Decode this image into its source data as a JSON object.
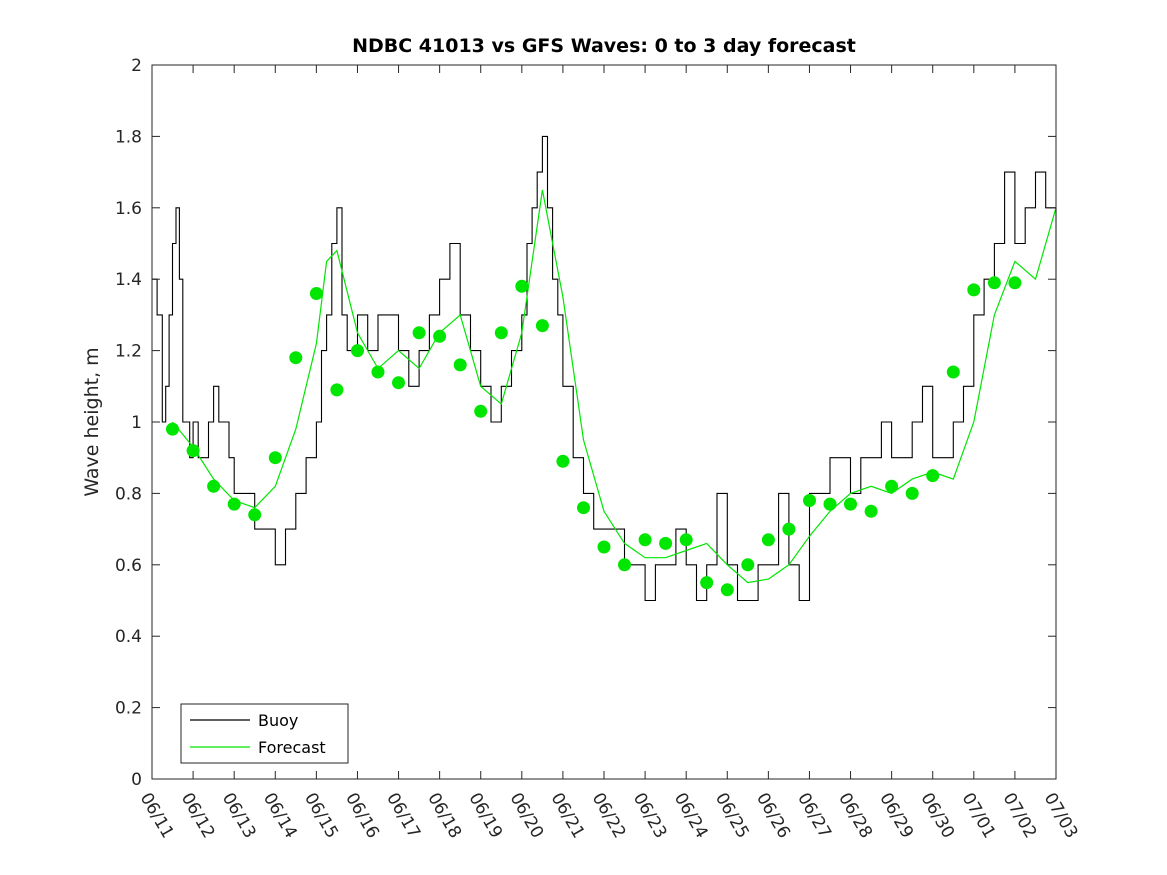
{
  "chart_data": {
    "type": "line",
    "title": "NDBC 41013 vs GFS Waves: 0 to 3 day forecast",
    "xlabel": "",
    "ylabel": "Wave height, m",
    "ylim": [
      0,
      2
    ],
    "yticks": [
      "0",
      "0.2",
      "0.4",
      "0.6",
      "0.8",
      "1",
      "1.2",
      "1.4",
      "1.6",
      "1.8",
      "2"
    ],
    "xlim": [
      "06/11",
      "07/03"
    ],
    "xticks": [
      "06/11",
      "06/12",
      "06/13",
      "06/14",
      "06/15",
      "06/16",
      "06/17",
      "06/18",
      "06/19",
      "06/20",
      "06/21",
      "06/22",
      "06/23",
      "06/24",
      "06/25",
      "06/26",
      "06/27",
      "06/28",
      "06/29",
      "06/30",
      "07/01",
      "07/02",
      "07/03"
    ],
    "grid": false,
    "legend_position": "bottom-left",
    "legend": [
      "Buoy",
      "Forecast"
    ],
    "colors": {
      "buoy": "#000000",
      "forecast": "#00e600",
      "axis": "#262626"
    },
    "series": [
      {
        "name": "Buoy",
        "style": "step",
        "x": [
          "06/11 00:00",
          "06/11 03:00",
          "06/11 06:00",
          "06/11 08:00",
          "06/11 10:00",
          "06/11 12:00",
          "06/11 14:00",
          "06/11 16:00",
          "06/11 18:00",
          "06/11 20:00",
          "06/11 22:00",
          "06/12 00:00",
          "06/12 03:00",
          "06/12 06:00",
          "06/12 09:00",
          "06/12 12:00",
          "06/12 15:00",
          "06/12 18:00",
          "06/12 21:00",
          "06/13 00:00",
          "06/13 06:00",
          "06/13 12:00",
          "06/13 18:00",
          "06/14 00:00",
          "06/14 06:00",
          "06/14 12:00",
          "06/14 18:00",
          "06/15 00:00",
          "06/15 03:00",
          "06/15 06:00",
          "06/15 09:00",
          "06/15 12:00",
          "06/15 15:00",
          "06/15 18:00",
          "06/16 00:00",
          "06/16 06:00",
          "06/16 12:00",
          "06/16 18:00",
          "06/17 00:00",
          "06/17 06:00",
          "06/17 12:00",
          "06/17 18:00",
          "06/18 00:00",
          "06/18 06:00",
          "06/18 12:00",
          "06/18 18:00",
          "06/19 00:00",
          "06/19 06:00",
          "06/19 12:00",
          "06/19 18:00",
          "06/20 00:00",
          "06/20 03:00",
          "06/20 06:00",
          "06/20 09:00",
          "06/20 12:00",
          "06/20 15:00",
          "06/20 18:00",
          "06/20 21:00",
          "06/21 00:00",
          "06/21 06:00",
          "06/21 12:00",
          "06/21 18:00",
          "06/22 00:00",
          "06/22 06:00",
          "06/22 12:00",
          "06/22 18:00",
          "06/23 00:00",
          "06/23 06:00",
          "06/23 12:00",
          "06/23 18:00",
          "06/24 00:00",
          "06/24 06:00",
          "06/24 12:00",
          "06/24 18:00",
          "06/25 00:00",
          "06/25 06:00",
          "06/25 12:00",
          "06/25 18:00",
          "06/26 00:00",
          "06/26 06:00",
          "06/26 12:00",
          "06/26 18:00",
          "06/27 00:00",
          "06/27 06:00",
          "06/27 12:00",
          "06/27 18:00",
          "06/28 00:00",
          "06/28 06:00",
          "06/28 12:00",
          "06/28 18:00",
          "06/29 00:00",
          "06/29 06:00",
          "06/29 12:00",
          "06/29 18:00",
          "06/30 00:00",
          "06/30 06:00",
          "06/30 12:00",
          "06/30 18:00",
          "07/01 00:00",
          "07/01 06:00",
          "07/01 12:00",
          "07/01 18:00",
          "07/02 00:00",
          "07/02 06:00",
          "07/02 12:00",
          "07/02 18:00",
          "07/03 00:00"
        ],
        "values": [
          1.4,
          1.3,
          1.0,
          1.1,
          1.3,
          1.5,
          1.6,
          1.4,
          1.0,
          1.0,
          0.9,
          1.0,
          0.9,
          0.9,
          1.0,
          1.1,
          1.0,
          1.0,
          0.9,
          0.8,
          0.8,
          0.7,
          0.7,
          0.6,
          0.7,
          0.8,
          0.9,
          1.0,
          1.2,
          1.3,
          1.5,
          1.6,
          1.3,
          1.2,
          1.3,
          1.2,
          1.3,
          1.3,
          1.2,
          1.1,
          1.2,
          1.3,
          1.4,
          1.5,
          1.3,
          1.2,
          1.1,
          1.0,
          1.1,
          1.2,
          1.3,
          1.5,
          1.6,
          1.7,
          1.8,
          1.6,
          1.4,
          1.3,
          1.1,
          0.9,
          0.8,
          0.7,
          0.7,
          0.7,
          0.6,
          0.6,
          0.5,
          0.6,
          0.6,
          0.7,
          0.6,
          0.5,
          0.6,
          0.8,
          0.6,
          0.5,
          0.5,
          0.6,
          0.6,
          0.8,
          0.6,
          0.5,
          0.8,
          0.8,
          0.9,
          0.9,
          0.8,
          0.9,
          0.9,
          1.0,
          0.9,
          0.9,
          1.0,
          1.1,
          0.9,
          0.9,
          1.0,
          1.1,
          1.3,
          1.4,
          1.5,
          1.7,
          1.5,
          1.6,
          1.7,
          1.6,
          1.4
        ]
      },
      {
        "name": "Forecast",
        "style": "line",
        "x": [
          "06/11 12:00",
          "06/12 00:00",
          "06/12 12:00",
          "06/13 00:00",
          "06/13 12:00",
          "06/14 00:00",
          "06/14 12:00",
          "06/15 00:00",
          "06/15 06:00",
          "06/15 12:00",
          "06/16 00:00",
          "06/16 12:00",
          "06/17 00:00",
          "06/17 12:00",
          "06/18 00:00",
          "06/18 12:00",
          "06/19 00:00",
          "06/19 12:00",
          "06/20 00:00",
          "06/20 06:00",
          "06/20 12:00",
          "06/21 00:00",
          "06/21 12:00",
          "06/22 00:00",
          "06/22 12:00",
          "06/23 00:00",
          "06/23 12:00",
          "06/24 00:00",
          "06/24 12:00",
          "06/25 00:00",
          "06/25 12:00",
          "06/26 00:00",
          "06/26 12:00",
          "06/27 00:00",
          "06/27 12:00",
          "06/28 00:00",
          "06/28 12:00",
          "06/29 00:00",
          "06/29 12:00",
          "06/30 00:00",
          "06/30 12:00",
          "07/01 00:00",
          "07/01 12:00",
          "07/02 00:00",
          "07/02 12:00",
          "07/03 00:00"
        ],
        "values": [
          1.0,
          0.93,
          0.84,
          0.78,
          0.76,
          0.82,
          0.98,
          1.22,
          1.45,
          1.48,
          1.25,
          1.15,
          1.2,
          1.15,
          1.25,
          1.3,
          1.1,
          1.05,
          1.25,
          1.45,
          1.65,
          1.35,
          0.95,
          0.75,
          0.66,
          0.62,
          0.62,
          0.64,
          0.66,
          0.6,
          0.55,
          0.56,
          0.6,
          0.68,
          0.75,
          0.8,
          0.82,
          0.8,
          0.84,
          0.86,
          0.84,
          1.0,
          1.3,
          1.45,
          1.4,
          1.6
        ]
      },
      {
        "name": "Forecast",
        "style": "markers",
        "x": [
          "06/11 12:00",
          "06/12 00:00",
          "06/12 12:00",
          "06/13 00:00",
          "06/13 12:00",
          "06/14 00:00",
          "06/14 12:00",
          "06/15 00:00",
          "06/15 12:00",
          "06/16 00:00",
          "06/16 12:00",
          "06/17 00:00",
          "06/17 12:00",
          "06/18 00:00",
          "06/18 12:00",
          "06/19 00:00",
          "06/19 12:00",
          "06/20 00:00",
          "06/20 12:00",
          "06/21 00:00",
          "06/21 12:00",
          "06/22 00:00",
          "06/22 12:00",
          "06/23 00:00",
          "06/23 12:00",
          "06/24 00:00",
          "06/24 12:00",
          "06/25 00:00",
          "06/25 12:00",
          "06/26 00:00",
          "06/26 12:00",
          "06/27 00:00",
          "06/27 12:00",
          "06/28 00:00",
          "06/28 12:00",
          "06/29 00:00",
          "06/29 12:00",
          "06/30 00:00",
          "06/30 12:00",
          "07/01 00:00",
          "07/01 12:00",
          "07/02 00:00"
        ],
        "values": [
          0.98,
          0.92,
          0.82,
          0.77,
          0.74,
          0.9,
          1.18,
          1.36,
          1.09,
          1.2,
          1.14,
          1.11,
          1.25,
          1.24,
          1.16,
          1.03,
          1.25,
          1.38,
          1.27,
          0.89,
          0.76,
          0.65,
          0.6,
          0.67,
          0.66,
          0.67,
          0.55,
          0.53,
          0.6,
          0.67,
          0.7,
          0.78,
          0.77,
          0.77,
          0.75,
          0.82,
          0.8,
          0.85,
          1.14,
          1.37,
          1.39,
          1.39
        ]
      }
    ]
  }
}
